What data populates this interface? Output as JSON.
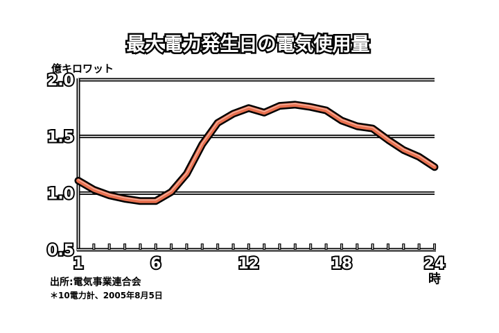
{
  "chart_data": {
    "type": "line",
    "title": "最大電力発生日の電気使用量",
    "ylabel": "億キロワット",
    "xlabel": "",
    "x_unit": "時",
    "ylim": [
      0.5,
      2.0
    ],
    "xlim": [
      1,
      24
    ],
    "yticks": [
      "0.5",
      "1.0",
      "1.5",
      "2.0"
    ],
    "xticks": [
      "1",
      "6",
      "12",
      "18",
      "24"
    ],
    "grid": true,
    "line_color": "#e8704f",
    "x": [
      1,
      2,
      3,
      4,
      5,
      6,
      7,
      8,
      9,
      10,
      11,
      12,
      13,
      14,
      15,
      16,
      17,
      18,
      19,
      20,
      21,
      22,
      23,
      24
    ],
    "values": [
      1.11,
      1.03,
      0.98,
      0.95,
      0.93,
      0.93,
      1.01,
      1.17,
      1.43,
      1.62,
      1.7,
      1.75,
      1.71,
      1.77,
      1.78,
      1.76,
      1.73,
      1.64,
      1.59,
      1.57,
      1.47,
      1.38,
      1.32,
      1.23
    ]
  },
  "footnote": {
    "source": "出所:電気事業連合会",
    "note": "＊10電力計、2005年8月5日"
  }
}
